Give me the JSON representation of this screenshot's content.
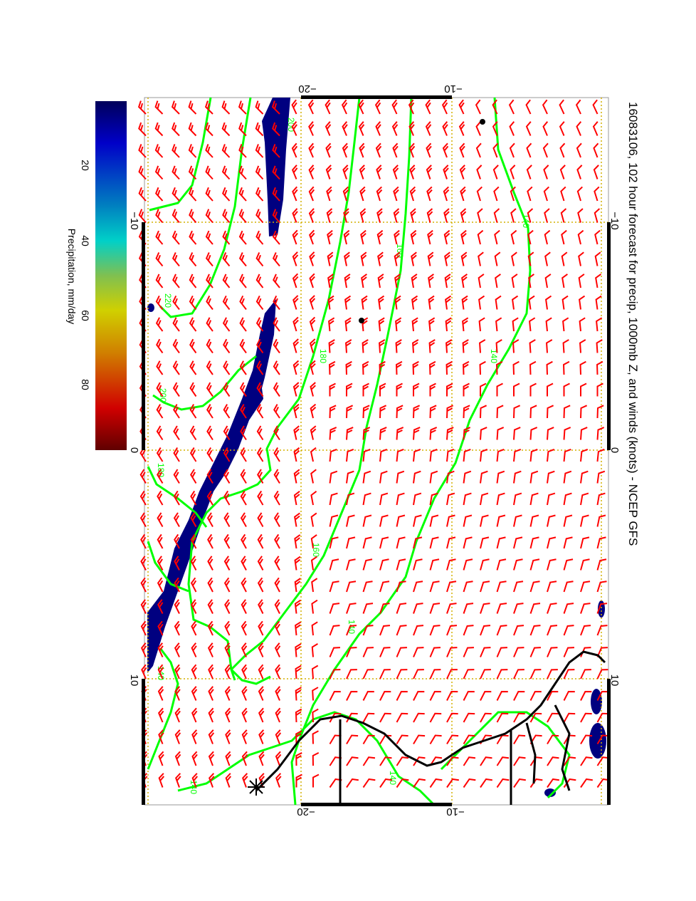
{
  "title": "16083106, 102 hour forecast for precip, 1000mb Z, and winds (knots) - NCEP GFS",
  "colorbar": {
    "label": "Precipitation, mm/day",
    "ticks": [
      "20",
      "40",
      "60",
      "80"
    ],
    "colors": [
      "#00005a",
      "#0000c8",
      "#0080c0",
      "#00d0c8",
      "#80c050",
      "#d0d000",
      "#d08000",
      "#d00000",
      "#600000"
    ]
  },
  "axes": {
    "top_ticks": [
      "−20",
      "−10"
    ],
    "bottom_ticks": [
      "−20",
      "−10"
    ],
    "left_ticks": [
      "−10",
      "0",
      "10"
    ],
    "right_ticks": [
      "−10",
      "0",
      "10"
    ]
  },
  "contour_labels": [
    "140",
    "160",
    "180",
    "200",
    "220",
    "200",
    "180",
    "160",
    "140",
    "140",
    "140",
    "140",
    "140"
  ],
  "colors": {
    "contour": "#00ff00",
    "barb": "#ff0000",
    "precip": "#000080",
    "grid": "#d4b000",
    "coast": "#000000"
  }
}
